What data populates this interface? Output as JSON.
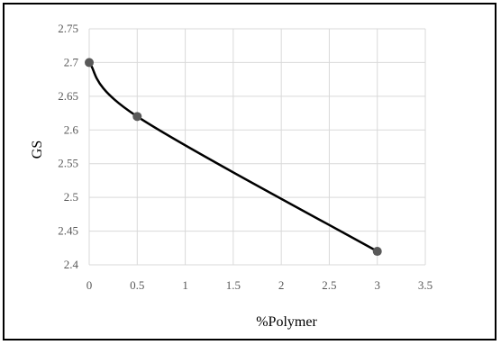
{
  "chart_data": {
    "type": "scatter",
    "title": "",
    "xlabel": "%Polymer",
    "ylabel": "GS",
    "xlim": [
      0,
      3.5
    ],
    "ylim": [
      2.4,
      2.75
    ],
    "xticks": [
      "0",
      "0.5",
      "1",
      "1.5",
      "2",
      "2.5",
      "3",
      "3.5"
    ],
    "yticks": [
      "2.4",
      "2.45",
      "2.5",
      "2.55",
      "2.6",
      "2.65",
      "2.7",
      "2.75"
    ],
    "grid": true,
    "legend": "none",
    "series": [
      {
        "x": [
          0,
          0.5,
          3
        ],
        "y": [
          2.7,
          2.62,
          2.42
        ],
        "line": "smooth",
        "color": "#000000",
        "marker_color": "#595959"
      }
    ]
  }
}
